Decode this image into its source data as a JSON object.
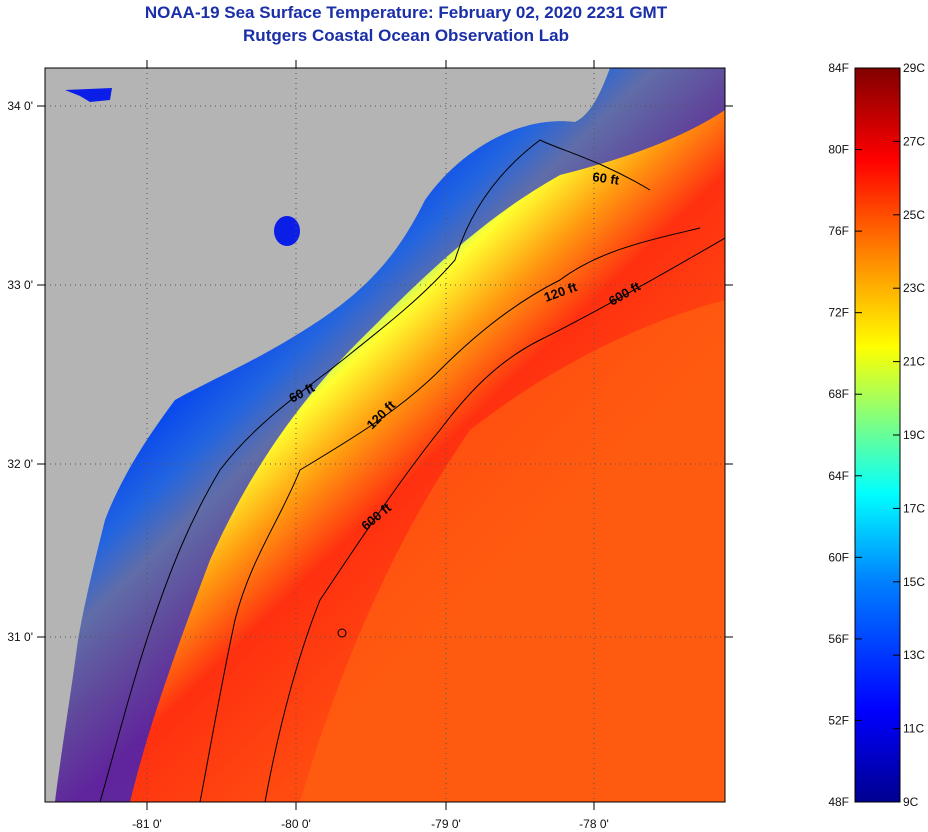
{
  "title": "NOAA-19 Sea Surface Temperature:  February 02, 2020 2231 GMT",
  "subtitle": "Rutgers Coastal Ocean Observation Lab",
  "longitude_labels": [
    "-81 0'",
    "-80 0'",
    "-79 0'",
    "-78 0'"
  ],
  "latitude_labels": [
    "34 0'",
    "33 0'",
    "32 0'",
    "31 0'"
  ],
  "contour_labels": [
    {
      "text": "60 ft",
      "depth": 60
    },
    {
      "text": "120 ft",
      "depth": 120
    },
    {
      "text": "600 ft",
      "depth": 600
    },
    {
      "text": "60 ft",
      "depth": 60
    },
    {
      "text": "120 ft",
      "depth": 120
    },
    {
      "text": "600 ft",
      "depth": 600
    }
  ],
  "colorbar": {
    "fahrenheit_labels": [
      "84F",
      "80F",
      "76F",
      "72F",
      "68F",
      "64F",
      "60F",
      "56F",
      "52F",
      "48F"
    ],
    "celsius_labels": [
      "29C",
      "27C",
      "25C",
      "23C",
      "21C",
      "19C",
      "17C",
      "15C",
      "13C",
      "11C",
      "9C"
    ],
    "colors": [
      "#00008f",
      "#0000ff",
      "#0080ff",
      "#00ffff",
      "#80ff80",
      "#ffff00",
      "#ff8000",
      "#ff0000",
      "#800000"
    ]
  },
  "colors": {
    "land": "#b4b4b4",
    "title": "#1a2fa8"
  }
}
